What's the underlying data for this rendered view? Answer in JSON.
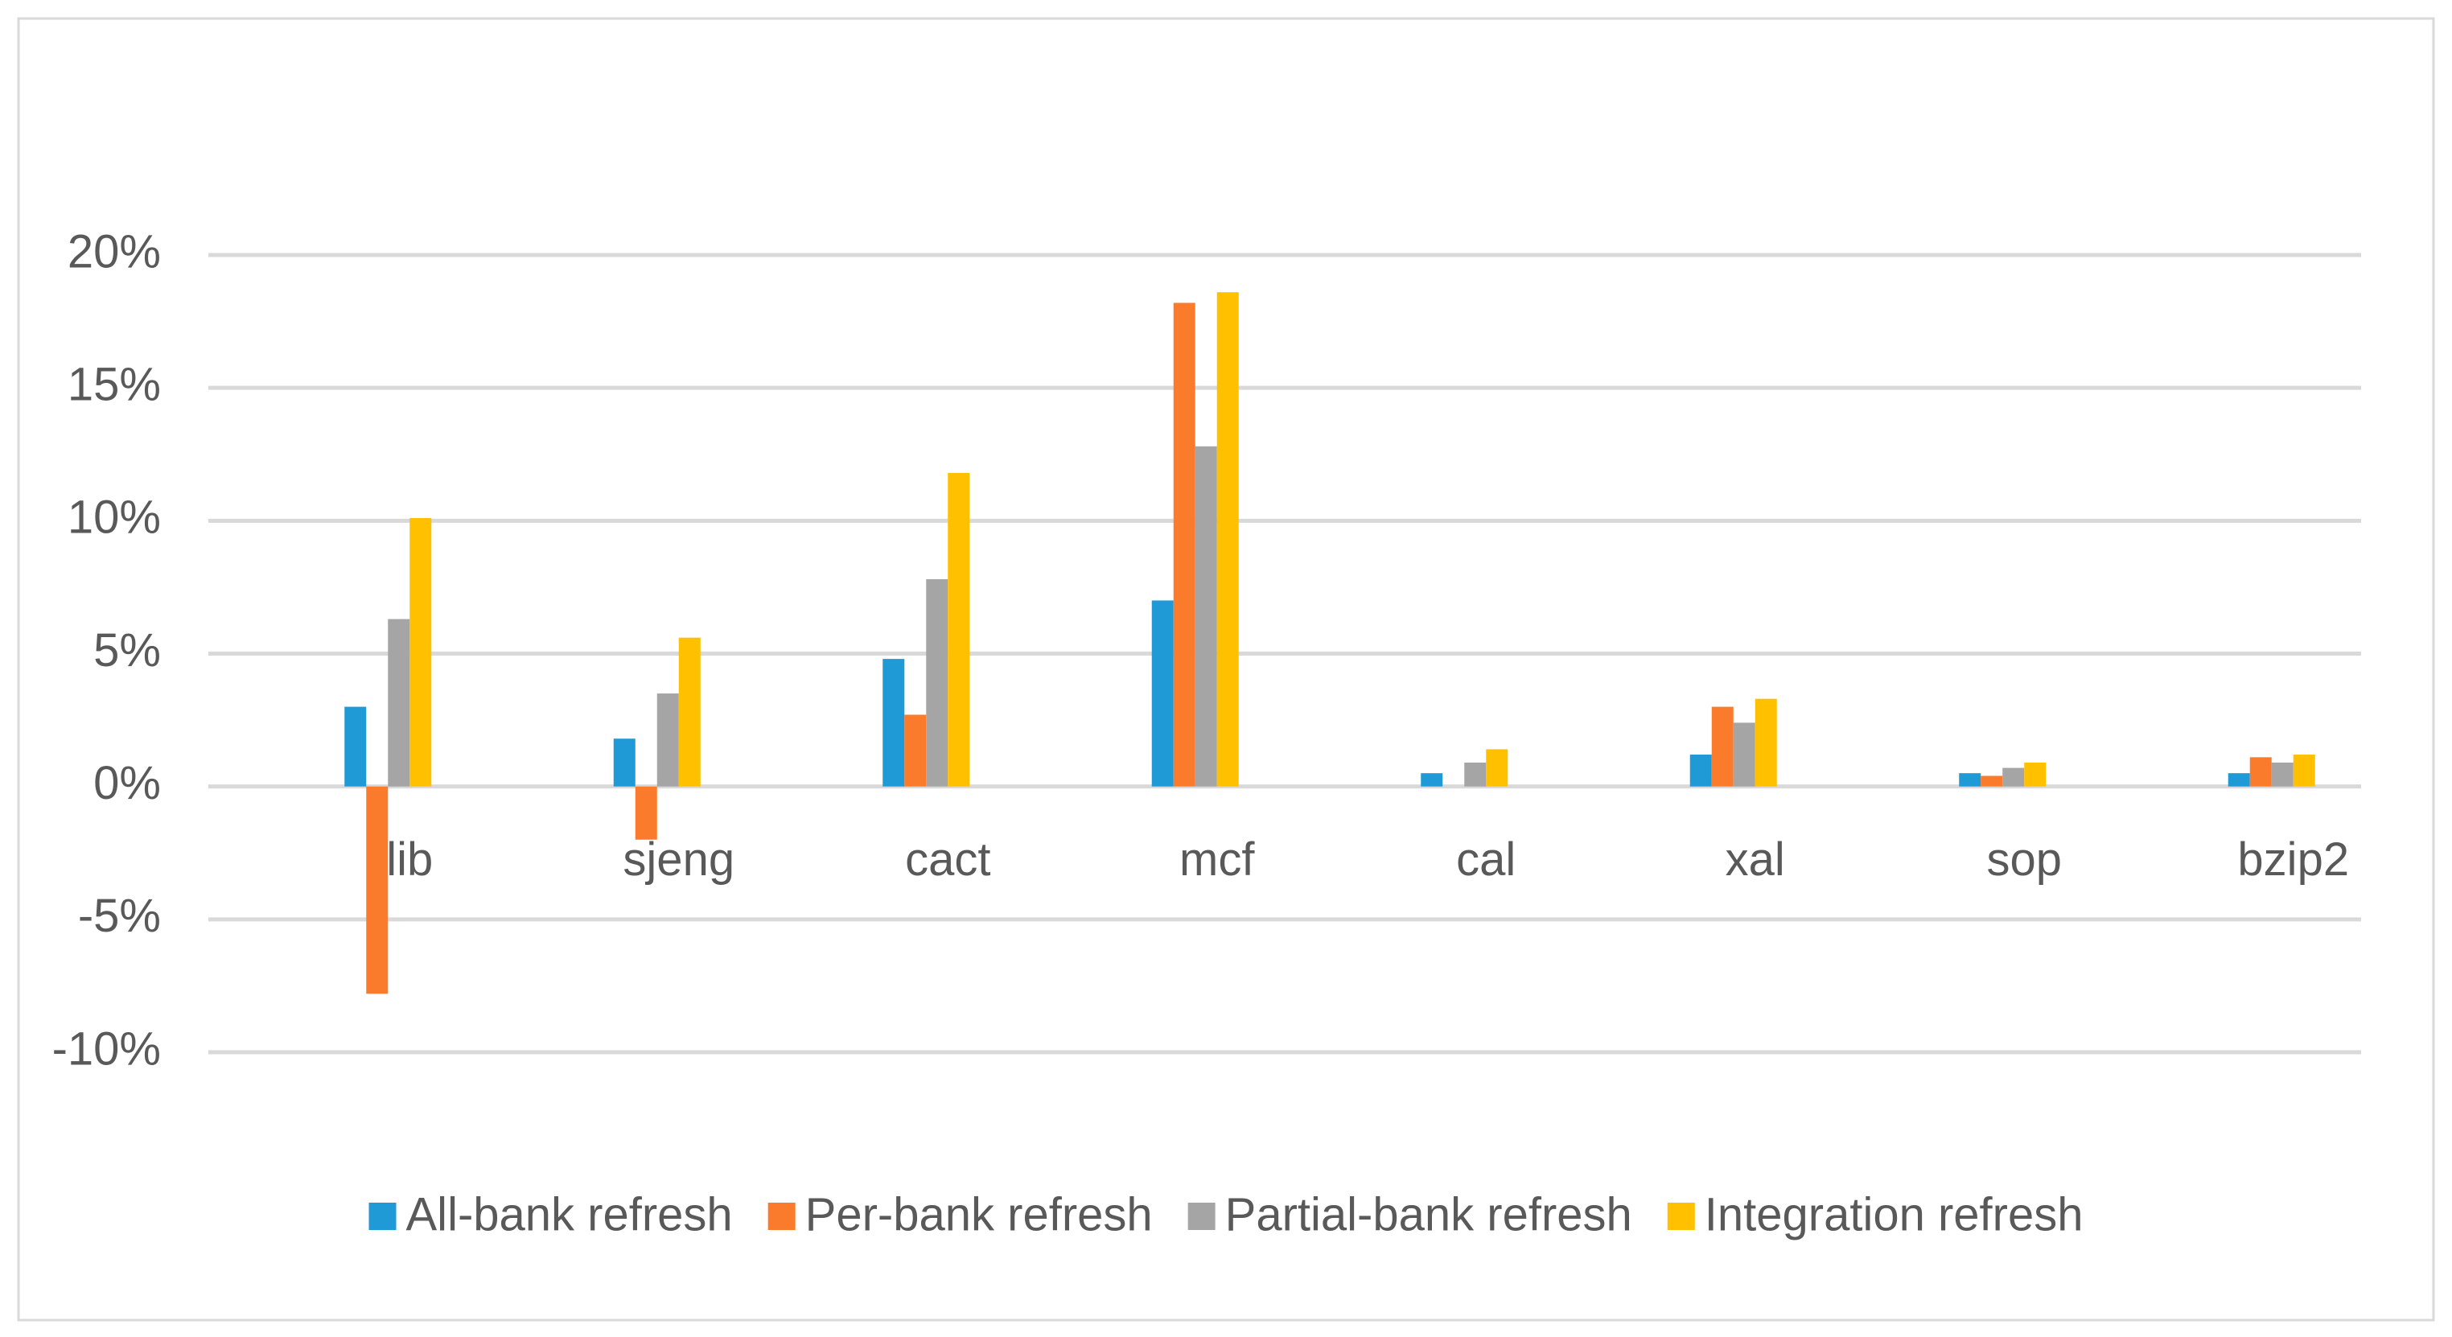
{
  "chart_data": {
    "type": "bar",
    "categories": [
      "lib",
      "sjeng",
      "cact",
      "mcf",
      "cal",
      "xal",
      "sop",
      "bzip2"
    ],
    "series": [
      {
        "name": "All-bank refresh",
        "color": "#1f9ad6",
        "values": [
          3.0,
          1.8,
          4.8,
          7.0,
          0.5,
          1.2,
          0.5,
          0.5
        ]
      },
      {
        "name": "Per-bank refresh",
        "color": "#fb7b2c",
        "values": [
          -7.8,
          -2.0,
          2.7,
          18.2,
          0,
          3.0,
          0.4,
          1.1
        ]
      },
      {
        "name": "Partial-bank refresh",
        "color": "#a5a5a5",
        "values": [
          6.3,
          3.5,
          7.8,
          12.8,
          0.9,
          2.4,
          0.7,
          0.9
        ]
      },
      {
        "name": "Integration refresh",
        "color": "#ffc000",
        "values": [
          10.1,
          5.6,
          11.8,
          18.6,
          1.4,
          3.3,
          0.9,
          1.2
        ]
      }
    ],
    "ylim": [
      -10,
      20
    ],
    "yticks": [
      {
        "value": -10,
        "label": "-10%"
      },
      {
        "value": -5,
        "label": "-5%"
      },
      {
        "value": 0,
        "label": "0%"
      },
      {
        "value": 5,
        "label": "5%"
      },
      {
        "value": 10,
        "label": "10%"
      },
      {
        "value": 15,
        "label": "15%"
      },
      {
        "value": 20,
        "label": "20%"
      }
    ],
    "grid": true,
    "legend": "bottom"
  }
}
